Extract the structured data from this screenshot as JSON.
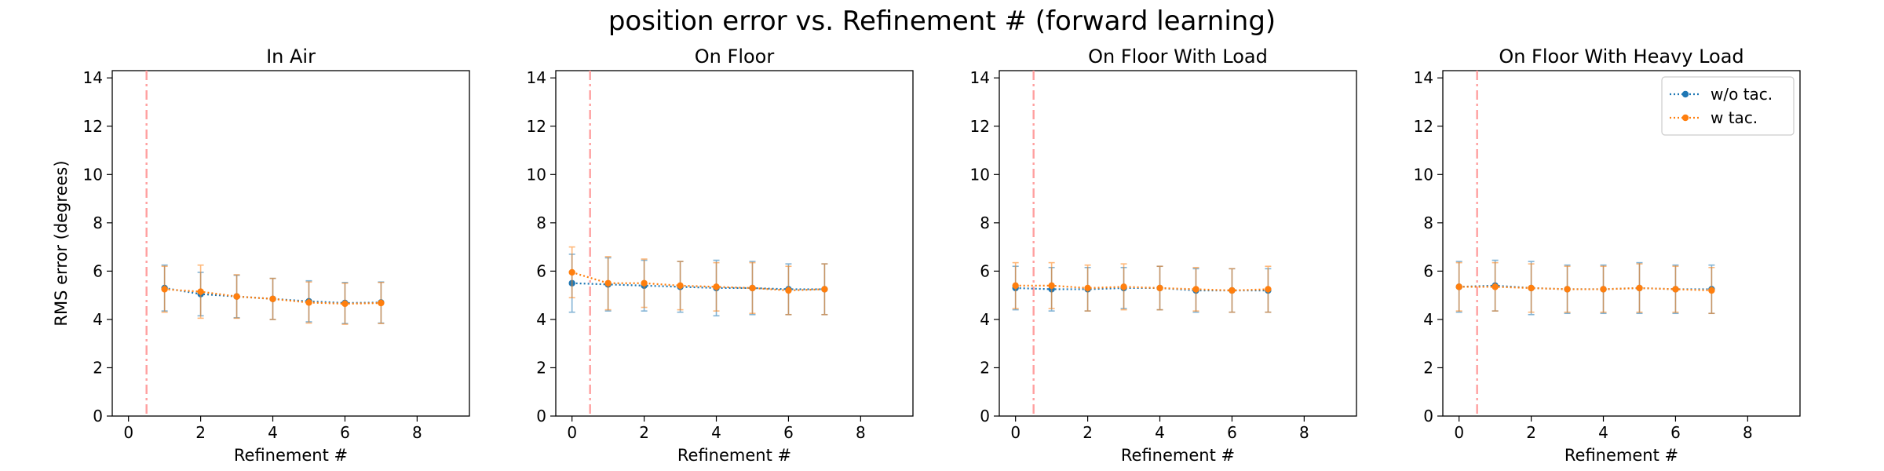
{
  "figure": {
    "title": "position error vs. Refinement # (forward learning)"
  },
  "colors": {
    "wo_tac": "#1f77b4",
    "w_tac": "#ff7f0e",
    "vline": "#ff9f9f"
  },
  "legend": {
    "placement": "top-right",
    "subplot": 3,
    "entries": [
      "w/o tac.",
      "w tac."
    ]
  },
  "chart_data": [
    {
      "type": "line",
      "title": "In Air",
      "xlabel": "Refinement #",
      "ylabel": "RMS error (degrees)",
      "xlim": [
        -0.45,
        9.45
      ],
      "ylim": [
        0,
        14.3
      ],
      "xticks": [
        0,
        2,
        4,
        6,
        8
      ],
      "yticks": [
        0,
        2,
        4,
        6,
        8,
        10,
        12,
        14
      ],
      "vline_x": 0.5,
      "series": [
        {
          "name": "w/o tac.",
          "x": [
            1,
            2,
            3,
            4,
            5,
            6,
            7
          ],
          "y": [
            5.3,
            5.05,
            4.95,
            4.85,
            4.75,
            4.68,
            4.7
          ],
          "yerr": [
            0.95,
            0.9,
            0.88,
            0.85,
            0.85,
            0.85,
            0.85
          ]
        },
        {
          "name": "w tac.",
          "x": [
            1,
            2,
            3,
            4,
            5,
            6,
            7
          ],
          "y": [
            5.25,
            5.15,
            4.95,
            4.85,
            4.7,
            4.65,
            4.68
          ],
          "yerr": [
            0.95,
            1.1,
            0.9,
            0.85,
            0.85,
            0.85,
            0.85
          ]
        }
      ]
    },
    {
      "type": "line",
      "title": "On Floor",
      "xlabel": "Refinement #",
      "ylabel": "",
      "xlim": [
        -0.45,
        9.45
      ],
      "ylim": [
        0,
        14.3
      ],
      "xticks": [
        0,
        2,
        4,
        6,
        8
      ],
      "yticks": [
        0,
        2,
        4,
        6,
        8,
        10,
        12,
        14
      ],
      "vline_x": 0.5,
      "series": [
        {
          "name": "w/o tac.",
          "x": [
            0,
            1,
            2,
            3,
            4,
            5,
            6,
            7
          ],
          "y": [
            5.5,
            5.45,
            5.4,
            5.35,
            5.3,
            5.3,
            5.25,
            5.25
          ],
          "yerr": [
            1.2,
            1.1,
            1.05,
            1.05,
            1.15,
            1.1,
            1.05,
            1.05
          ]
        },
        {
          "name": "w tac.",
          "x": [
            0,
            1,
            2,
            3,
            4,
            5,
            6,
            7
          ],
          "y": [
            5.95,
            5.5,
            5.5,
            5.4,
            5.35,
            5.3,
            5.2,
            5.25
          ],
          "yerr": [
            1.05,
            1.1,
            1.0,
            1.0,
            1.0,
            1.05,
            1.0,
            1.05
          ]
        }
      ]
    },
    {
      "type": "line",
      "title": "On Floor With Load",
      "xlabel": "Refinement #",
      "ylabel": "",
      "xlim": [
        -0.45,
        9.45
      ],
      "ylim": [
        0,
        14.3
      ],
      "xticks": [
        0,
        2,
        4,
        6,
        8
      ],
      "yticks": [
        0,
        2,
        4,
        6,
        8,
        10,
        12,
        14
      ],
      "vline_x": 0.5,
      "series": [
        {
          "name": "w/o tac.",
          "x": [
            0,
            1,
            2,
            3,
            4,
            5,
            6,
            7
          ],
          "y": [
            5.3,
            5.25,
            5.25,
            5.3,
            5.3,
            5.2,
            5.2,
            5.2
          ],
          "yerr": [
            0.9,
            0.9,
            0.9,
            0.85,
            0.9,
            0.9,
            0.9,
            0.9
          ]
        },
        {
          "name": "w tac.",
          "x": [
            0,
            1,
            2,
            3,
            4,
            5,
            6,
            7
          ],
          "y": [
            5.4,
            5.4,
            5.3,
            5.35,
            5.3,
            5.25,
            5.2,
            5.25
          ],
          "yerr": [
            0.95,
            0.95,
            0.95,
            0.95,
            0.9,
            0.9,
            0.9,
            0.95
          ]
        }
      ]
    },
    {
      "type": "line",
      "title": "On Floor With Heavy Load",
      "xlabel": "Refinement #",
      "ylabel": "",
      "xlim": [
        -0.45,
        9.45
      ],
      "ylim": [
        0,
        14.3
      ],
      "xticks": [
        0,
        2,
        4,
        6,
        8
      ],
      "yticks": [
        0,
        2,
        4,
        6,
        8,
        10,
        12,
        14
      ],
      "vline_x": 0.5,
      "series": [
        {
          "name": "w/o tac.",
          "x": [
            0,
            1,
            2,
            3,
            4,
            5,
            6,
            7
          ],
          "y": [
            5.35,
            5.4,
            5.3,
            5.25,
            5.25,
            5.3,
            5.25,
            5.25
          ],
          "yerr": [
            1.05,
            1.05,
            1.1,
            1.0,
            1.0,
            1.05,
            1.0,
            1.0
          ]
        },
        {
          "name": "w tac.",
          "x": [
            0,
            1,
            2,
            3,
            4,
            5,
            6,
            7
          ],
          "y": [
            5.35,
            5.35,
            5.3,
            5.25,
            5.25,
            5.3,
            5.25,
            5.2
          ],
          "yerr": [
            1.0,
            1.0,
            1.0,
            0.95,
            0.95,
            1.0,
            0.95,
            0.95
          ]
        }
      ]
    }
  ]
}
